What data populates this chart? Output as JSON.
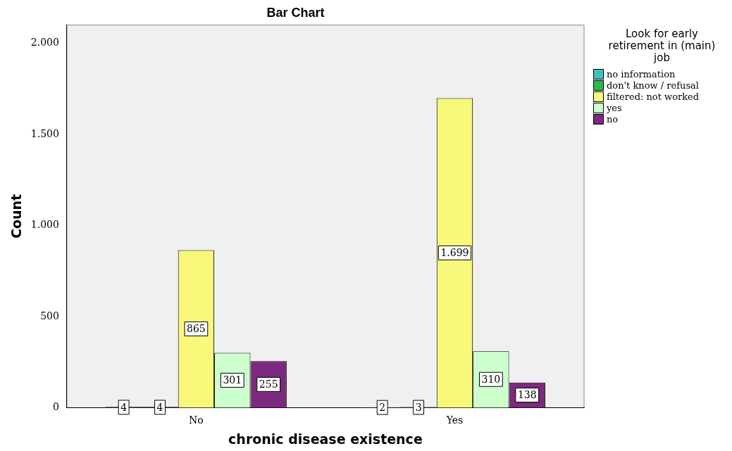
{
  "chart_data": {
    "type": "bar",
    "title": "Bar Chart",
    "xlabel": "chronic disease existence",
    "ylabel": "Count",
    "legend_title": "Look for early retirement in (main) job",
    "legend": "right",
    "categories": [
      "No",
      "Yes"
    ],
    "series": [
      {
        "name": "no information",
        "color": "#40bfc4",
        "values": [
          4,
          2
        ],
        "value_labels": [
          "4",
          "2"
        ]
      },
      {
        "name": "don't know / refusal",
        "color": "#2db84d",
        "values": [
          4,
          3
        ],
        "value_labels": [
          "4",
          "3"
        ]
      },
      {
        "name": "filtered: not worked",
        "color": "#f8f87a",
        "values": [
          865,
          1699
        ],
        "value_labels": [
          "865",
          "1.699"
        ]
      },
      {
        "name": "yes",
        "color": "#ccffcc",
        "values": [
          301,
          310
        ],
        "value_labels": [
          "301",
          "310"
        ]
      },
      {
        "name": "no",
        "color": "#7b2a7d",
        "values": [
          255,
          138
        ],
        "value_labels": [
          "255",
          "138"
        ]
      }
    ],
    "ylim": [
      0,
      2100
    ],
    "yticks": [
      0,
      {
        "value": 500,
        "label": "500"
      },
      {
        "value": 1000,
        "label": "1.000"
      },
      {
        "value": 1500,
        "label": "1.500"
      },
      {
        "value": 2000,
        "label": "2.000"
      }
    ],
    "grid": false
  }
}
